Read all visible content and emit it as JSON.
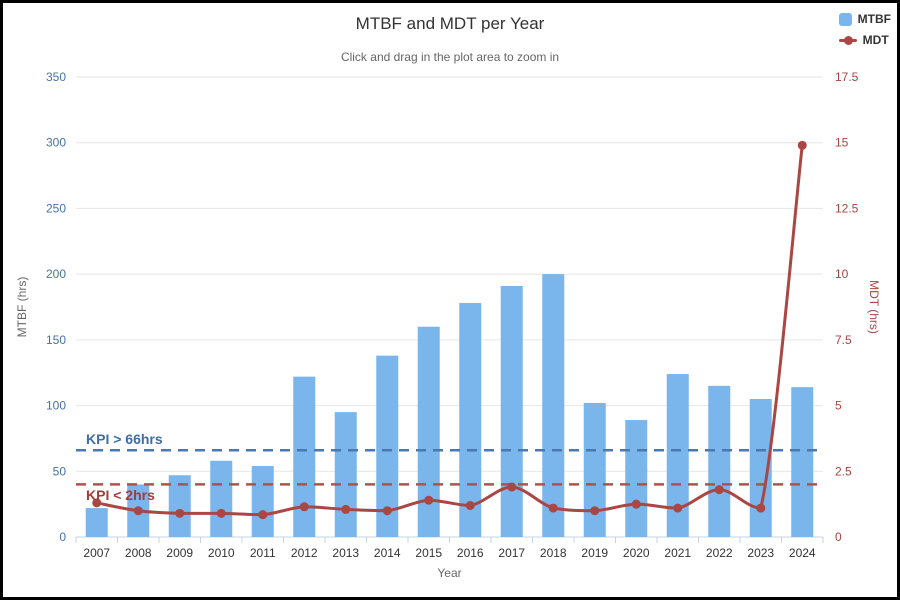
{
  "title": "MTBF and MDT per Year",
  "subtitle": "Click and drag in the plot area to zoom in",
  "legend": [
    {
      "label": "MTBF",
      "type": "column"
    },
    {
      "label": "MDT",
      "type": "line"
    }
  ],
  "colors": {
    "bar": "#7ab5ec",
    "line": "#aa4643",
    "grid": "#e6e6e6",
    "axis": "#c6d3e2",
    "x_label": "#333333",
    "kpi_mtbf_line": "#4a79b2",
    "kpi_mdt_line": "#b4504c"
  },
  "axes": {
    "left": {
      "title": "MTBF (hrs)",
      "color": "#4572a7",
      "ticks": [
        0,
        50,
        100,
        150,
        200,
        250,
        300,
        350
      ],
      "max": 350
    },
    "right": {
      "title": "MDT (hrs)",
      "color": "#a94442",
      "ticks": [
        0,
        2.5,
        5,
        7.5,
        10,
        12.5,
        15,
        17.5
      ],
      "max": 17.5
    },
    "x": {
      "title": "Year"
    }
  },
  "kpi": {
    "mtbf_label": "KPI > 66hrs",
    "mtbf_value": 66,
    "mdt_label": "KPI < 2hrs",
    "mdt_value": 2
  },
  "chart_data": {
    "type": "bar",
    "subtype": "column-and-line-dual-axis",
    "categories": [
      "2007",
      "2008",
      "2009",
      "2010",
      "2011",
      "2012",
      "2013",
      "2014",
      "2015",
      "2016",
      "2017",
      "2018",
      "2019",
      "2020",
      "2021",
      "2022",
      "2023",
      "2024"
    ],
    "series": [
      {
        "name": "MTBF",
        "type": "bar",
        "axis": "left",
        "color": "#7ab5ec",
        "values": [
          22,
          40,
          47,
          58,
          54,
          122,
          95,
          138,
          160,
          178,
          191,
          200,
          102,
          89,
          124,
          115,
          105,
          114
        ]
      },
      {
        "name": "MDT",
        "type": "line",
        "axis": "right",
        "color": "#aa4643",
        "values": [
          1.3,
          1.0,
          0.9,
          0.9,
          0.85,
          1.15,
          1.05,
          1.0,
          1.4,
          1.2,
          1.9,
          1.1,
          1.0,
          1.25,
          1.1,
          1.8,
          1.1,
          14.9
        ]
      }
    ],
    "xlabel": "Year",
    "ylabel_left": "MTBF (hrs)",
    "ylabel_right": "MDT (hrs)",
    "ylim_left": [
      0,
      350
    ],
    "ylim_right": [
      0,
      17.5
    ],
    "grid": true,
    "legend_position": "top-right"
  }
}
